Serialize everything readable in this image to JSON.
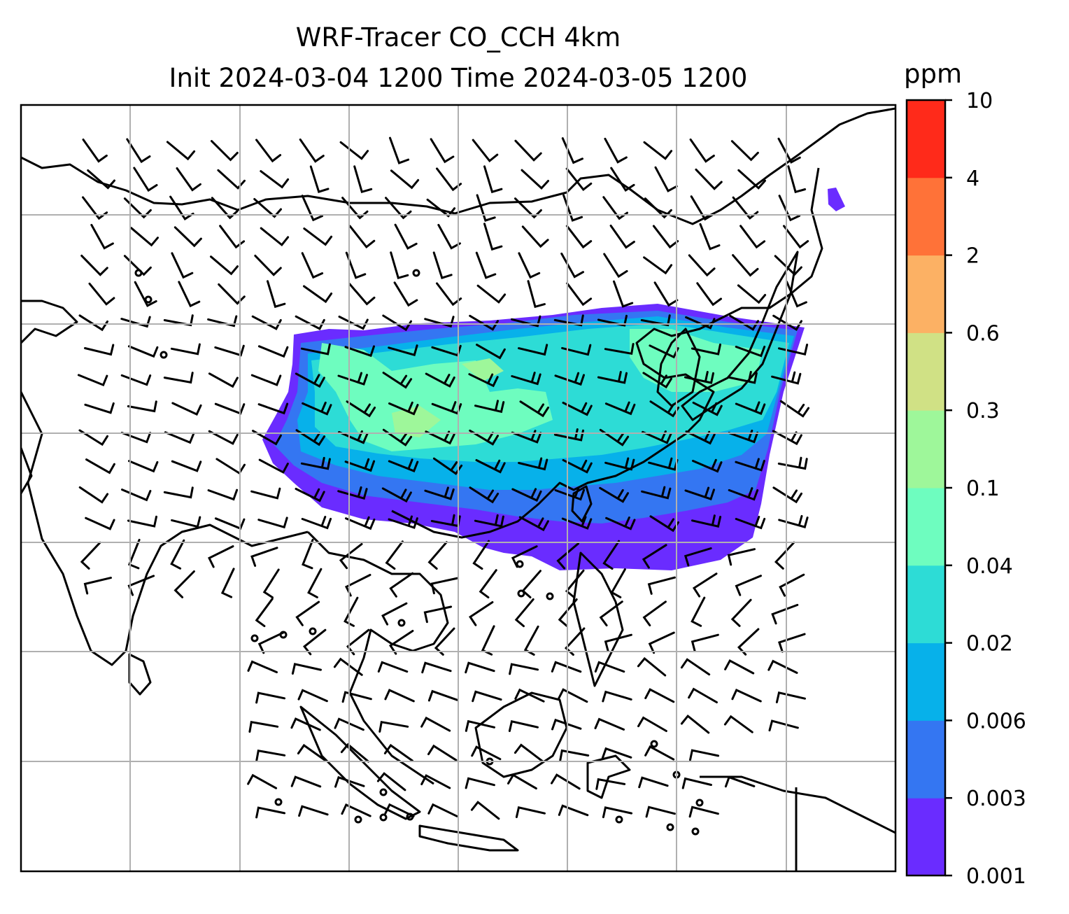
{
  "title_line1": "WRF-Tracer CO_CCH 4km",
  "title_line2": "Init 2024-03-04 1200 Time 2024-03-05 1200",
  "colorbar": {
    "unit": "ppm",
    "levels": [
      "0.001",
      "0.003",
      "0.006",
      "0.02",
      "0.04",
      "0.1",
      "0.3",
      "0.6",
      "2",
      "4",
      "10"
    ],
    "colors": [
      "#6a2cff",
      "#3476f2",
      "#07b1ea",
      "#2ddcd6",
      "#6efdbf",
      "#9ef79a",
      "#d0e185",
      "#fcb164",
      "#ff7238",
      "#ff2a1a"
    ]
  },
  "map": {
    "projection": "geographic",
    "graticule": "on",
    "coastlines": "on",
    "wind_barbs": "on"
  }
}
